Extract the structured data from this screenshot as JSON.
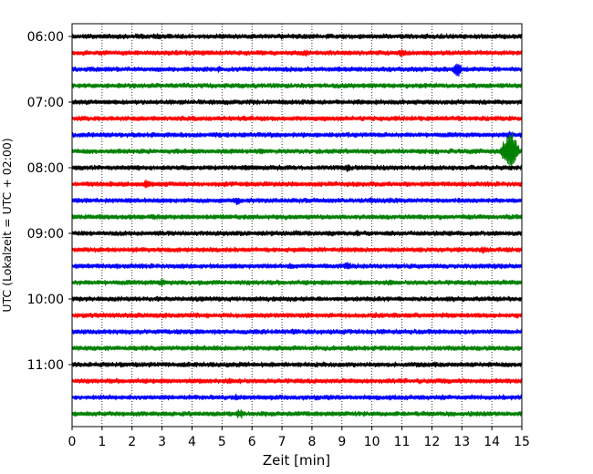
{
  "chart_data": {
    "type": "line",
    "title": "",
    "xlabel": "Zeit  [min]",
    "ylabel": "UTC (Lokalzeit = UTC + 02:00)",
    "xlim": [
      0,
      15
    ],
    "x_ticks": [
      "0",
      "1",
      "2",
      "3",
      "4",
      "5",
      "6",
      "7",
      "8",
      "9",
      "10",
      "11",
      "12",
      "13",
      "14",
      "15"
    ],
    "y_ticks": [
      "06:00",
      "07:00",
      "08:00",
      "09:00",
      "10:00",
      "11:00"
    ],
    "row_minutes": 15,
    "trace_start": "06:00",
    "vertical_grid": true,
    "color_cycle": [
      "#000000",
      "#ff0000",
      "#0000ff",
      "#008000"
    ],
    "traces": [
      {
        "start": "06:00",
        "amplitude": 3,
        "events": [
          {
            "min": 2.8,
            "amp": 4
          },
          {
            "min": 8.0,
            "amp": 4
          }
        ]
      },
      {
        "start": "06:15",
        "amplitude": 3,
        "events": [
          {
            "min": 7.8,
            "amp": 5
          },
          {
            "min": 11.0,
            "amp": 5
          }
        ]
      },
      {
        "start": "06:30",
        "amplitude": 3,
        "events": [
          {
            "min": 4.9,
            "amp": 4
          },
          {
            "min": 12.85,
            "amp": 9
          }
        ]
      },
      {
        "start": "06:45",
        "amplitude": 3,
        "events": []
      },
      {
        "start": "07:00",
        "amplitude": 3,
        "events": []
      },
      {
        "start": "07:15",
        "amplitude": 3,
        "events": []
      },
      {
        "start": "07:30",
        "amplitude": 3,
        "events": [
          {
            "min": 14.6,
            "amp": 6
          }
        ]
      },
      {
        "start": "07:45",
        "amplitude": 3,
        "events": [
          {
            "min": 14.6,
            "amp": 26
          }
        ]
      },
      {
        "start": "08:00",
        "amplitude": 3,
        "events": [
          {
            "min": 2.2,
            "amp": 4
          },
          {
            "min": 9.2,
            "amp": 5
          }
        ]
      },
      {
        "start": "08:15",
        "amplitude": 3,
        "events": [
          {
            "min": 2.5,
            "amp": 6
          },
          {
            "min": 15.0,
            "amp": 4
          }
        ]
      },
      {
        "start": "08:30",
        "amplitude": 3,
        "events": [
          {
            "min": 5.5,
            "amp": 5
          },
          {
            "min": 10.0,
            "amp": 4
          }
        ]
      },
      {
        "start": "08:45",
        "amplitude": 3,
        "events": [
          {
            "min": 2.7,
            "amp": 4
          }
        ]
      },
      {
        "start": "09:00",
        "amplitude": 3,
        "events": [
          {
            "min": 7.5,
            "amp": 4
          },
          {
            "min": 9.5,
            "amp": 4
          }
        ]
      },
      {
        "start": "09:15",
        "amplitude": 3,
        "events": [
          {
            "min": 13.7,
            "amp": 5
          }
        ]
      },
      {
        "start": "09:30",
        "amplitude": 3,
        "events": [
          {
            "min": 7.3,
            "amp": 4
          },
          {
            "min": 9.2,
            "amp": 6
          }
        ]
      },
      {
        "start": "09:45",
        "amplitude": 3,
        "events": [
          {
            "min": 3.0,
            "amp": 5
          }
        ]
      },
      {
        "start": "10:00",
        "amplitude": 3,
        "events": []
      },
      {
        "start": "10:15",
        "amplitude": 3,
        "events": [
          {
            "min": 10.1,
            "amp": 4
          }
        ]
      },
      {
        "start": "10:30",
        "amplitude": 3,
        "events": [
          {
            "min": 7.4,
            "amp": 4
          }
        ]
      },
      {
        "start": "10:45",
        "amplitude": 3,
        "events": []
      },
      {
        "start": "11:00",
        "amplitude": 3,
        "events": [
          {
            "min": 12.1,
            "amp": 4
          }
        ]
      },
      {
        "start": "11:15",
        "amplitude": 3,
        "events": [
          {
            "min": 5.6,
            "amp": 4
          }
        ]
      },
      {
        "start": "11:30",
        "amplitude": 3,
        "events": [
          {
            "min": 5.5,
            "amp": 4
          }
        ]
      },
      {
        "start": "11:45",
        "amplitude": 3,
        "events": [
          {
            "min": 5.6,
            "amp": 6
          }
        ]
      }
    ]
  }
}
